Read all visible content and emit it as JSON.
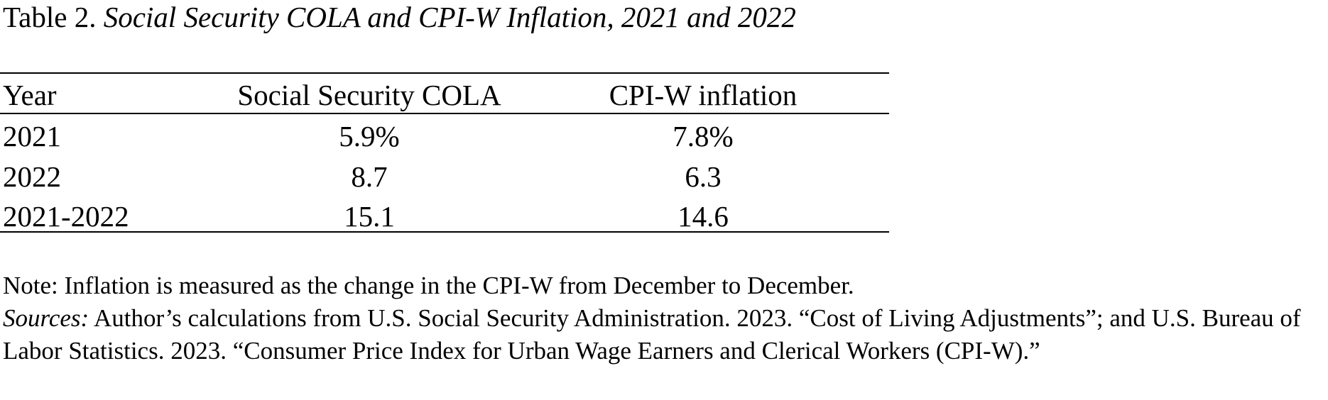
{
  "title": {
    "label": "Table 2.",
    "text": "Social Security COLA and CPI-W Inflation, 2021 and 2022"
  },
  "table": {
    "headers": [
      "Year",
      "Social Security COLA",
      "CPI-W inflation"
    ],
    "rows": [
      [
        "2021",
        "5.9%",
        "7.8%"
      ],
      [
        "2022",
        "8.7",
        "6.3"
      ],
      [
        "2021-2022",
        "15.1",
        "14.6"
      ]
    ]
  },
  "note": "Note: Inflation is measured as the change in the CPI-W from December to December.",
  "sources": {
    "label": "Sources:",
    "text": "Author’s calculations from U.S. Social Security Administration. 2023. “Cost of Living Adjustments”; and U.S. Bureau of Labor Statistics. 2023. “Consumer Price Index for Urban Wage Earners and Clerical Workers (CPI-W).”"
  },
  "chart_data": {
    "type": "table",
    "title": "Social Security COLA and CPI-W Inflation, 2021 and 2022",
    "columns": [
      "Year",
      "Social Security COLA",
      "CPI-W inflation"
    ],
    "categories": [
      "2021",
      "2022",
      "2021-2022"
    ],
    "series": [
      {
        "name": "Social Security COLA",
        "values": [
          5.9,
          8.7,
          15.1
        ]
      },
      {
        "name": "CPI-W inflation",
        "values": [
          7.8,
          6.3,
          14.6
        ]
      }
    ],
    "unit": "%"
  }
}
